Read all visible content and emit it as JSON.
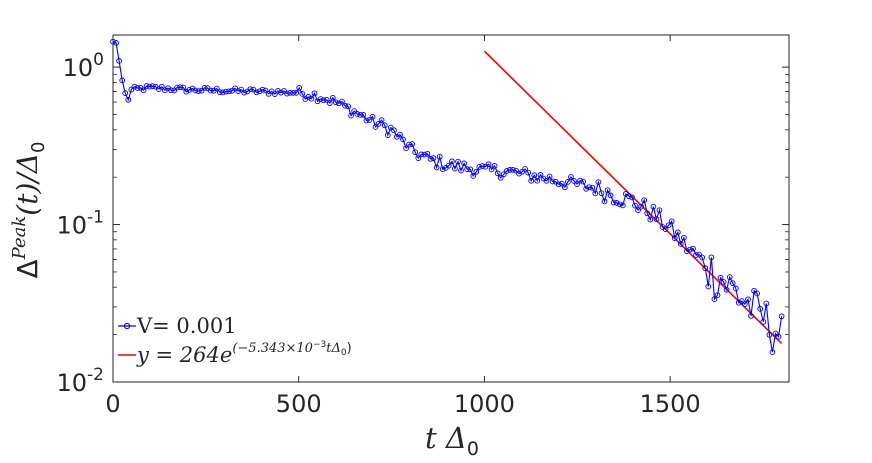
{
  "chart_data": {
    "type": "line",
    "title": "",
    "xlabel": "t Δ",
    "xlabel_subscript": "0",
    "ylabel": "Δ",
    "ylabel_superscript": "Peak",
    "ylabel_tail": "(t)/Δ",
    "ylabel_subscript": "0",
    "xlim": [
      0,
      1820
    ],
    "ylim": [
      0.01,
      1.6
    ],
    "yscale": "log",
    "x_ticks": [
      0,
      500,
      1000,
      1500
    ],
    "x_tick_labels": [
      "0",
      "500",
      "1000",
      "1500"
    ],
    "y_ticks": [
      0.01,
      0.1,
      1
    ],
    "y_tick_labels": [
      {
        "base": "10",
        "exp": "-2"
      },
      {
        "base": "10",
        "exp": "-1"
      },
      {
        "base": "10",
        "exp": "0"
      }
    ],
    "grid": false,
    "legend_position": "bottom-left",
    "series": [
      {
        "name": "V= 0.001",
        "color": "#0000ff",
        "marker": "circle",
        "anchors": [
          [
            0,
            1.45
          ],
          [
            10,
            1.42
          ],
          [
            20,
            0.95
          ],
          [
            30,
            0.7
          ],
          [
            40,
            0.62
          ],
          [
            50,
            0.72
          ],
          [
            100,
            0.74
          ],
          [
            200,
            0.72
          ],
          [
            300,
            0.71
          ],
          [
            400,
            0.7
          ],
          [
            500,
            0.69
          ],
          [
            550,
            0.66
          ],
          [
            600,
            0.6
          ],
          [
            650,
            0.52
          ],
          [
            700,
            0.45
          ],
          [
            750,
            0.4
          ],
          [
            800,
            0.3
          ],
          [
            850,
            0.26
          ],
          [
            900,
            0.24
          ],
          [
            950,
            0.23
          ],
          [
            1000,
            0.22
          ],
          [
            1050,
            0.22
          ],
          [
            1100,
            0.21
          ],
          [
            1150,
            0.2
          ],
          [
            1200,
            0.19
          ],
          [
            1250,
            0.18
          ],
          [
            1300,
            0.17
          ],
          [
            1350,
            0.155
          ],
          [
            1400,
            0.14
          ],
          [
            1450,
            0.12
          ],
          [
            1500,
            0.095
          ],
          [
            1550,
            0.07
          ],
          [
            1600,
            0.055
          ],
          [
            1650,
            0.043
          ],
          [
            1700,
            0.033
          ],
          [
            1750,
            0.026
          ],
          [
            1800,
            0.02
          ]
        ],
        "n_points": 220,
        "x_start": 0,
        "x_end": 1800,
        "noise_pct": [
          0.04,
          0.08,
          0.1,
          0.14,
          0.35
        ],
        "noise_breaks_x": [
          500,
          700,
          1300,
          1600
        ]
      },
      {
        "name": "y = 264e^{(-5.343×10^{-3} tΔ_0)}",
        "color": "#ff0000",
        "marker": "none",
        "formula": {
          "a": 264,
          "k": -0.005343
        },
        "x_range": [
          1000,
          1800
        ]
      }
    ],
    "legend_entries": [
      {
        "text": "V= 0.001"
      },
      {
        "prefix": "y = 264e",
        "sup": "(−5.343×10",
        "sup2": "−3",
        "sup_tail": "tΔ",
        "sup_sub": "0",
        "close": ")"
      }
    ]
  }
}
